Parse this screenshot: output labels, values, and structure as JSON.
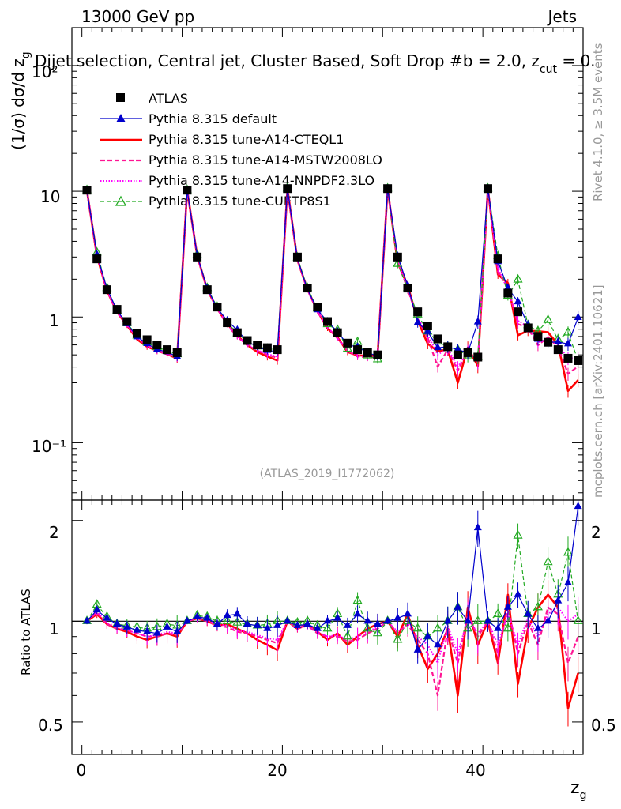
{
  "header": {
    "left": "13000 GeV pp",
    "right": "Jets"
  },
  "selection_text": "Dijet selection, Central jet, Cluster Based, Soft Drop #b = 2.0, z",
  "selection_sub": "cut",
  "selection_end": " = 0.",
  "side_text_top": "Rivet 4.1.0, ≥ 3.5M events",
  "side_text_bottom": "mcplots.cern.ch [arXiv:2401.10621]",
  "analysis_id": "(ATLAS_2019_I1772062)",
  "chart_data": {
    "type": "line",
    "title": "",
    "xlabel": "z",
    "xlabel_sub": "g",
    "ylabel": "(1/σ) dσ/d z",
    "ylabel_sub": "g",
    "ratio_ylabel": "Ratio to ATLAS",
    "xlim": [
      -1,
      50
    ],
    "ylim": [
      0.035,
      200
    ],
    "ratio_ylim": [
      0.4,
      2.3
    ],
    "yscale": "log",
    "ratio_yscale": "log",
    "x_ticks": [
      "0",
      "20",
      "40"
    ],
    "y_ticks": [
      "10⁻¹",
      "1",
      "10",
      "10²"
    ],
    "ratio_ticks": [
      "0.5",
      "1",
      "2"
    ],
    "legend": [
      {
        "label": "ATLAS",
        "color": "#000000",
        "style": "square"
      },
      {
        "label": "Pythia 8.315 default",
        "color": "#0000cc",
        "style": "triangle"
      },
      {
        "label": "Pythia 8.315 tune-A14-CTEQL1",
        "color": "#ff0000",
        "style": "solid"
      },
      {
        "label": "Pythia 8.315 tune-A14-MSTW2008LO",
        "color": "#ff1493",
        "style": "dashed"
      },
      {
        "label": "Pythia 8.315 tune-A14-NNPDF2.3LO",
        "color": "#ff00ff",
        "style": "dotted"
      },
      {
        "label": "Pythia 8.315 tune-CUETP8S1",
        "color": "#22aa22",
        "style": "open-triangle"
      }
    ],
    "x": [
      0.5,
      1.5,
      2.5,
      3.5,
      4.5,
      5.5,
      6.5,
      7.5,
      8.5,
      9.5,
      10.5,
      11.5,
      12.5,
      13.5,
      14.5,
      15.5,
      16.5,
      17.5,
      18.5,
      19.5,
      20.5,
      21.5,
      22.5,
      23.5,
      24.5,
      25.5,
      26.5,
      27.5,
      28.5,
      29.5,
      30.5,
      31.5,
      32.5,
      33.5,
      34.5,
      35.5,
      36.5,
      37.5,
      38.5,
      39.5,
      40.5,
      41.5,
      42.5,
      43.5,
      44.5,
      45.5,
      46.5,
      47.5,
      48.5,
      49.5
    ],
    "atlas": [
      10.2,
      2.9,
      1.65,
      1.15,
      0.92,
      0.74,
      0.66,
      0.6,
      0.55,
      0.52,
      10.2,
      3.0,
      1.65,
      1.2,
      0.9,
      0.75,
      0.65,
      0.6,
      0.57,
      0.55,
      10.5,
      3.0,
      1.7,
      1.2,
      0.92,
      0.75,
      0.62,
      0.55,
      0.52,
      0.5,
      10.5,
      3.0,
      1.7,
      1.1,
      0.85,
      0.67,
      0.58,
      0.5,
      0.52,
      0.48,
      10.5,
      2.9,
      1.55,
      1.1,
      0.82,
      0.7,
      0.63,
      0.55,
      0.47,
      0.45
    ],
    "series": [
      {
        "name": "Pythia 8.315 default",
        "color": "#0000cc",
        "ratio": [
          1.0,
          1.08,
          1.02,
          0.98,
          0.96,
          0.94,
          0.93,
          0.92,
          0.96,
          0.93,
          1.0,
          1.03,
          1.02,
          0.98,
          1.04,
          1.05,
          0.98,
          0.97,
          0.95,
          0.97,
          1.0,
          0.97,
          0.98,
          0.95,
          1.0,
          1.02,
          0.97,
          1.05,
          1.0,
          0.98,
          1.0,
          1.02,
          1.05,
          0.82,
          0.9,
          0.85,
          1.0,
          1.1,
          1.0,
          1.9,
          1.0,
          0.95,
          1.1,
          1.2,
          1.05,
          0.95,
          1.0,
          1.15,
          1.3,
          2.2
        ]
      },
      {
        "name": "Pythia 8.315 tune-A14-CTEQL1",
        "color": "#ff0000",
        "ratio": [
          1.0,
          1.05,
          0.98,
          0.95,
          0.93,
          0.9,
          0.88,
          0.9,
          0.92,
          0.9,
          1.0,
          1.02,
          1.0,
          0.97,
          0.98,
          0.95,
          0.92,
          0.88,
          0.85,
          0.82,
          1.0,
          0.95,
          0.98,
          0.93,
          0.88,
          0.92,
          0.85,
          0.9,
          0.95,
          0.98,
          1.0,
          0.9,
          1.05,
          0.85,
          0.72,
          0.8,
          0.95,
          0.6,
          1.1,
          0.85,
          1.0,
          0.75,
          1.2,
          0.65,
          0.95,
          1.1,
          1.2,
          1.1,
          0.55,
          0.7
        ]
      },
      {
        "name": "Pythia 8.315 tune-A14-MSTW2008LO",
        "color": "#ff1493",
        "ratio": [
          1.0,
          1.06,
          0.98,
          0.95,
          0.94,
          0.92,
          0.9,
          0.9,
          0.92,
          0.91,
          1.0,
          1.02,
          1.0,
          0.97,
          0.96,
          0.93,
          0.92,
          0.9,
          0.88,
          0.86,
          1.0,
          0.95,
          0.97,
          0.92,
          0.9,
          0.9,
          0.87,
          0.88,
          0.92,
          0.95,
          1.0,
          0.92,
          0.98,
          0.88,
          0.8,
          0.6,
          0.95,
          0.75,
          1.05,
          0.9,
          1.0,
          0.8,
          1.1,
          0.8,
          1.0,
          0.85,
          1.1,
          1.05,
          0.75,
          0.9
        ]
      },
      {
        "name": "Pythia 8.315 tune-A14-NNPDF2.3LO",
        "color": "#ff00ff",
        "ratio": [
          1.0,
          1.07,
          0.99,
          0.96,
          0.94,
          0.92,
          0.9,
          0.91,
          0.93,
          0.92,
          1.0,
          1.02,
          1.01,
          0.98,
          0.97,
          0.94,
          0.93,
          0.91,
          0.89,
          0.88,
          1.0,
          0.96,
          0.97,
          0.93,
          0.9,
          0.91,
          0.88,
          0.9,
          0.93,
          0.96,
          1.0,
          0.93,
          0.99,
          0.9,
          0.85,
          0.75,
          0.97,
          0.8,
          1.02,
          0.92,
          1.0,
          0.85,
          1.05,
          0.85,
          1.02,
          0.9,
          1.05,
          1.1,
          1.0,
          1.05
        ]
      },
      {
        "name": "Pythia 8.315 tune-CUETP8S1",
        "color": "#22aa22",
        "ratio": [
          1.0,
          1.12,
          1.03,
          0.98,
          0.97,
          0.96,
          0.95,
          0.96,
          0.98,
          0.97,
          1.0,
          1.04,
          1.03,
          1.0,
          1.0,
          0.99,
          0.98,
          0.97,
          0.98,
          1.0,
          1.0,
          0.99,
          1.0,
          0.97,
          0.95,
          1.05,
          0.9,
          1.15,
          0.95,
          0.92,
          1.0,
          0.88,
          1.0,
          0.95,
          0.9,
          0.95,
          1.0,
          1.1,
          0.95,
          1.0,
          1.0,
          1.05,
          0.95,
          1.8,
          1.05,
          1.1,
          1.5,
          1.2,
          1.6,
          1.0
        ]
      }
    ]
  }
}
